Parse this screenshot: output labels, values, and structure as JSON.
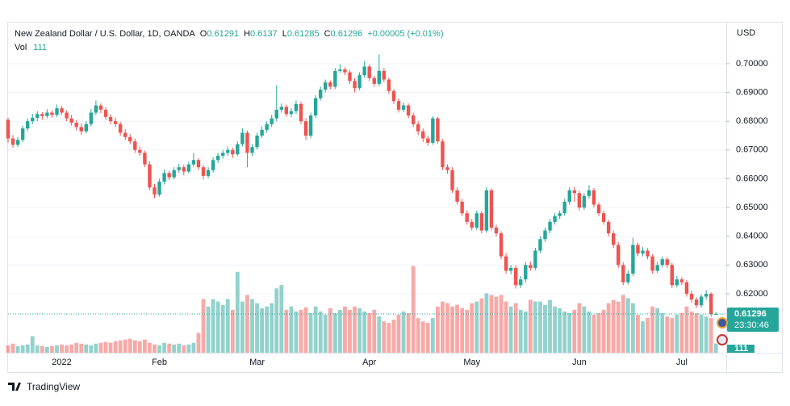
{
  "chart_data": {
    "type": "candlestick",
    "title": "New Zealand Dollar / U.S. Dollar, 1D, OANDA",
    "ohlc_labels": [
      "O",
      "H",
      "L",
      "C"
    ],
    "change": "+0.00005 (+0.01%)",
    "volume_title": "Vol",
    "unit": "USD",
    "countdown": "23:30:46",
    "brand": "TradingView",
    "up_color": "#26a69a",
    "down_color": "#ef5350",
    "grid": true,
    "ylim": [
      0.5995,
      0.7143
    ],
    "yticks": [
      {
        "value": 0.62,
        "label": "0.62000"
      },
      {
        "value": 0.63,
        "label": "0.63000"
      },
      {
        "value": 0.64,
        "label": "0.64000"
      },
      {
        "value": 0.65,
        "label": "0.65000"
      },
      {
        "value": 0.66,
        "label": "0.66000"
      },
      {
        "value": 0.67,
        "label": "0.67000"
      },
      {
        "value": 0.68,
        "label": "0.68000"
      },
      {
        "value": 0.69,
        "label": "0.69000"
      },
      {
        "value": 0.7,
        "label": "0.70000"
      }
    ],
    "categories": [
      null,
      null,
      null,
      null,
      null,
      null,
      null,
      null,
      null,
      null,
      null,
      "2022",
      null,
      null,
      null,
      null,
      null,
      null,
      null,
      null,
      null,
      null,
      null,
      null,
      null,
      null,
      null,
      null,
      null,
      null,
      null,
      "Feb",
      null,
      null,
      null,
      null,
      null,
      null,
      null,
      null,
      null,
      null,
      null,
      null,
      null,
      null,
      null,
      null,
      null,
      null,
      null,
      "Mar",
      null,
      null,
      null,
      null,
      null,
      null,
      null,
      null,
      null,
      null,
      null,
      null,
      null,
      null,
      null,
      null,
      null,
      null,
      null,
      null,
      null,
      null,
      "Apr",
      null,
      null,
      null,
      null,
      null,
      null,
      null,
      null,
      null,
      null,
      null,
      null,
      null,
      null,
      null,
      null,
      null,
      null,
      null,
      null,
      "May",
      null,
      null,
      null,
      null,
      null,
      null,
      null,
      null,
      null,
      null,
      null,
      null,
      null,
      null,
      null,
      null,
      null,
      null,
      null,
      null,
      null,
      "Jun",
      null,
      null,
      null,
      null,
      null,
      null,
      null,
      null,
      null,
      null,
      null,
      null,
      null,
      null,
      null,
      null,
      null,
      null,
      null,
      null,
      "Jul",
      null,
      null,
      null,
      null,
      null,
      null,
      null
    ],
    "ohlc": [
      [
        0.6805,
        0.6812,
        0.6725,
        0.674
      ],
      [
        0.674,
        0.6752,
        0.6708,
        0.6718
      ],
      [
        0.6718,
        0.6745,
        0.671,
        0.6735
      ],
      [
        0.6735,
        0.6785,
        0.6728,
        0.6775
      ],
      [
        0.6775,
        0.681,
        0.6765,
        0.68
      ],
      [
        0.68,
        0.6825,
        0.679,
        0.6812
      ],
      [
        0.6812,
        0.6835,
        0.68,
        0.6825
      ],
      [
        0.6825,
        0.6832,
        0.6805,
        0.6818
      ],
      [
        0.6818,
        0.6842,
        0.681,
        0.683
      ],
      [
        0.683,
        0.6838,
        0.6812,
        0.6822
      ],
      [
        0.6822,
        0.6858,
        0.6815,
        0.6845
      ],
      [
        0.6845,
        0.6852,
        0.6822,
        0.683
      ],
      [
        0.683,
        0.6838,
        0.68,
        0.681
      ],
      [
        0.681,
        0.6822,
        0.6785,
        0.6795
      ],
      [
        0.6795,
        0.6805,
        0.6768,
        0.678
      ],
      [
        0.678,
        0.6792,
        0.6752,
        0.6765
      ],
      [
        0.6765,
        0.68,
        0.6758,
        0.679
      ],
      [
        0.679,
        0.6842,
        0.6782,
        0.683
      ],
      [
        0.683,
        0.6872,
        0.6822,
        0.6855
      ],
      [
        0.6855,
        0.6862,
        0.6828,
        0.684
      ],
      [
        0.684,
        0.6848,
        0.6805,
        0.6815
      ],
      [
        0.6815,
        0.6825,
        0.679,
        0.68
      ],
      [
        0.68,
        0.6812,
        0.678,
        0.679
      ],
      [
        0.679,
        0.6798,
        0.675,
        0.676
      ],
      [
        0.676,
        0.6772,
        0.6735,
        0.6745
      ],
      [
        0.6745,
        0.6755,
        0.672,
        0.673
      ],
      [
        0.673,
        0.674,
        0.669,
        0.67
      ],
      [
        0.67,
        0.6712,
        0.668,
        0.669
      ],
      [
        0.669,
        0.6698,
        0.664,
        0.665
      ],
      [
        0.665,
        0.666,
        0.656,
        0.657
      ],
      [
        0.657,
        0.6582,
        0.6532,
        0.6545
      ],
      [
        0.6545,
        0.66,
        0.6538,
        0.659
      ],
      [
        0.659,
        0.6632,
        0.658,
        0.662
      ],
      [
        0.662,
        0.6628,
        0.6595,
        0.6605
      ],
      [
        0.6605,
        0.664,
        0.6598,
        0.663
      ],
      [
        0.663,
        0.6652,
        0.662,
        0.664
      ],
      [
        0.664,
        0.6648,
        0.6612,
        0.6625
      ],
      [
        0.6625,
        0.666,
        0.6618,
        0.665
      ],
      [
        0.665,
        0.669,
        0.6642,
        0.6665
      ],
      [
        0.6665,
        0.6672,
        0.663,
        0.664
      ],
      [
        0.664,
        0.6648,
        0.6598,
        0.661
      ],
      [
        0.661,
        0.664,
        0.6602,
        0.663
      ],
      [
        0.663,
        0.6675,
        0.6622,
        0.6665
      ],
      [
        0.6665,
        0.669,
        0.6655,
        0.668
      ],
      [
        0.668,
        0.67,
        0.667,
        0.669
      ],
      [
        0.669,
        0.6712,
        0.668,
        0.67
      ],
      [
        0.67,
        0.6708,
        0.6672,
        0.6685
      ],
      [
        0.6685,
        0.673,
        0.6678,
        0.672
      ],
      [
        0.672,
        0.6775,
        0.6712,
        0.676
      ],
      [
        0.676,
        0.6768,
        0.664,
        0.669
      ],
      [
        0.669,
        0.672,
        0.668,
        0.671
      ],
      [
        0.671,
        0.676,
        0.6702,
        0.675
      ],
      [
        0.675,
        0.6782,
        0.6742,
        0.677
      ],
      [
        0.677,
        0.68,
        0.676,
        0.679
      ],
      [
        0.679,
        0.6822,
        0.678,
        0.681
      ],
      [
        0.681,
        0.6925,
        0.68,
        0.684
      ],
      [
        0.684,
        0.6862,
        0.683,
        0.685
      ],
      [
        0.685,
        0.6858,
        0.6815,
        0.6825
      ],
      [
        0.6825,
        0.6845,
        0.6815,
        0.6835
      ],
      [
        0.6835,
        0.6872,
        0.6825,
        0.686
      ],
      [
        0.686,
        0.6868,
        0.679,
        0.68
      ],
      [
        0.68,
        0.681,
        0.6735,
        0.675
      ],
      [
        0.675,
        0.683,
        0.6742,
        0.682
      ],
      [
        0.682,
        0.689,
        0.6812,
        0.688
      ],
      [
        0.688,
        0.692,
        0.6872,
        0.691
      ],
      [
        0.691,
        0.6945,
        0.69,
        0.6935
      ],
      [
        0.6935,
        0.6942,
        0.691,
        0.692
      ],
      [
        0.692,
        0.6985,
        0.6912,
        0.6975
      ],
      [
        0.6975,
        0.6998,
        0.6968,
        0.698
      ],
      [
        0.698,
        0.6988,
        0.696,
        0.697
      ],
      [
        0.697,
        0.6978,
        0.693,
        0.694
      ],
      [
        0.694,
        0.695,
        0.69,
        0.6915
      ],
      [
        0.6915,
        0.697,
        0.6908,
        0.696
      ],
      [
        0.696,
        0.701,
        0.6952,
        0.699
      ],
      [
        0.699,
        0.6998,
        0.694,
        0.695
      ],
      [
        0.695,
        0.6958,
        0.692,
        0.693
      ],
      [
        0.693,
        0.7032,
        0.6922,
        0.6975
      ],
      [
        0.6975,
        0.6985,
        0.6935,
        0.6945
      ],
      [
        0.6945,
        0.6952,
        0.6895,
        0.6905
      ],
      [
        0.6905,
        0.6912,
        0.686,
        0.687
      ],
      [
        0.687,
        0.688,
        0.683,
        0.684
      ],
      [
        0.684,
        0.6865,
        0.6832,
        0.6855
      ],
      [
        0.6855,
        0.6862,
        0.681,
        0.682
      ],
      [
        0.682,
        0.683,
        0.678,
        0.679
      ],
      [
        0.679,
        0.68,
        0.6752,
        0.6765
      ],
      [
        0.6765,
        0.6775,
        0.6728,
        0.674
      ],
      [
        0.674,
        0.675,
        0.6715,
        0.6725
      ],
      [
        0.6725,
        0.6818,
        0.6718,
        0.681
      ],
      [
        0.681,
        0.6815,
        0.6722,
        0.673
      ],
      [
        0.673,
        0.6738,
        0.663,
        0.664
      ],
      [
        0.664,
        0.665,
        0.6618,
        0.663
      ],
      [
        0.663,
        0.664,
        0.655,
        0.656
      ],
      [
        0.656,
        0.657,
        0.651,
        0.652
      ],
      [
        0.652,
        0.653,
        0.647,
        0.648
      ],
      [
        0.648,
        0.649,
        0.644,
        0.645
      ],
      [
        0.645,
        0.646,
        0.642,
        0.643
      ],
      [
        0.643,
        0.649,
        0.6422,
        0.648
      ],
      [
        0.648,
        0.6488,
        0.641,
        0.642
      ],
      [
        0.642,
        0.657,
        0.6412,
        0.656
      ],
      [
        0.656,
        0.6566,
        0.642,
        0.643
      ],
      [
        0.643,
        0.644,
        0.64,
        0.641
      ],
      [
        0.641,
        0.6418,
        0.632,
        0.633
      ],
      [
        0.633,
        0.634,
        0.627,
        0.628
      ],
      [
        0.628,
        0.63,
        0.6268,
        0.629
      ],
      [
        0.629,
        0.6298,
        0.6218,
        0.623
      ],
      [
        0.623,
        0.6262,
        0.622,
        0.625
      ],
      [
        0.625,
        0.631,
        0.624,
        0.63
      ],
      [
        0.63,
        0.6312,
        0.628,
        0.629
      ],
      [
        0.629,
        0.636,
        0.6282,
        0.635
      ],
      [
        0.635,
        0.64,
        0.6342,
        0.639
      ],
      [
        0.639,
        0.643,
        0.638,
        0.642
      ],
      [
        0.642,
        0.646,
        0.641,
        0.645
      ],
      [
        0.645,
        0.648,
        0.644,
        0.647
      ],
      [
        0.647,
        0.649,
        0.646,
        0.648
      ],
      [
        0.648,
        0.653,
        0.6472,
        0.652
      ],
      [
        0.652,
        0.657,
        0.651,
        0.656
      ],
      [
        0.656,
        0.6572,
        0.652,
        0.655
      ],
      [
        0.655,
        0.6558,
        0.649,
        0.65
      ],
      [
        0.65,
        0.655,
        0.6492,
        0.654
      ],
      [
        0.654,
        0.6578,
        0.653,
        0.656
      ],
      [
        0.656,
        0.6568,
        0.65,
        0.651
      ],
      [
        0.651,
        0.6518,
        0.647,
        0.648
      ],
      [
        0.648,
        0.649,
        0.644,
        0.645
      ],
      [
        0.645,
        0.6458,
        0.64,
        0.641
      ],
      [
        0.641,
        0.642,
        0.636,
        0.637
      ],
      [
        0.637,
        0.638,
        0.629,
        0.63
      ],
      [
        0.63,
        0.631,
        0.623,
        0.624
      ],
      [
        0.624,
        0.6282,
        0.6232,
        0.627
      ],
      [
        0.627,
        0.6395,
        0.6262,
        0.637
      ],
      [
        0.637,
        0.6378,
        0.633,
        0.634
      ],
      [
        0.634,
        0.6362,
        0.633,
        0.635
      ],
      [
        0.635,
        0.6358,
        0.632,
        0.633
      ],
      [
        0.633,
        0.6338,
        0.627,
        0.628
      ],
      [
        0.628,
        0.6312,
        0.6272,
        0.63
      ],
      [
        0.63,
        0.633,
        0.6292,
        0.632
      ],
      [
        0.632,
        0.6328,
        0.629,
        0.63
      ],
      [
        0.63,
        0.6308,
        0.622,
        0.623
      ],
      [
        0.623,
        0.6262,
        0.6222,
        0.625
      ],
      [
        0.625,
        0.6258,
        0.623,
        0.624
      ],
      [
        0.624,
        0.6248,
        0.619,
        0.62
      ],
      [
        0.62,
        0.621,
        0.617,
        0.618
      ],
      [
        0.618,
        0.6188,
        0.615,
        0.616
      ],
      [
        0.616,
        0.6198,
        0.6152,
        0.619
      ],
      [
        0.619,
        0.6212,
        0.618,
        0.62
      ],
      [
        0.62,
        0.6205,
        0.612,
        0.6129
      ],
      [
        0.61291,
        0.6137,
        0.61285,
        0.61296
      ]
    ],
    "volume": {
      "ylim": [
        0,
        4000
      ],
      "values": [
        90,
        110,
        80,
        90,
        100,
        200,
        90,
        80,
        70,
        80,
        90,
        100,
        90,
        100,
        120,
        110,
        100,
        90,
        110,
        120,
        130,
        120,
        140,
        150,
        160,
        170,
        150,
        140,
        160,
        120,
        100,
        90,
        120,
        110,
        100,
        110,
        90,
        100,
        120,
        240,
        650,
        560,
        650,
        620,
        580,
        650,
        520,
        980,
        620,
        700,
        650,
        600,
        540,
        560,
        600,
        780,
        820,
        520,
        560,
        500,
        520,
        550,
        480,
        560,
        500,
        460,
        540,
        480,
        520,
        560,
        520,
        560,
        540,
        500,
        480,
        520,
        440,
        380,
        360,
        400,
        460,
        500,
        480,
        1050,
        420,
        380,
        360,
        420,
        560,
        620,
        600,
        560,
        580,
        540,
        520,
        600,
        620,
        660,
        720,
        700,
        680,
        700,
        620,
        560,
        600,
        520,
        500,
        640,
        620,
        620,
        580,
        640,
        560,
        540,
        500,
        480,
        520,
        600,
        560,
        500,
        460,
        480,
        520,
        600,
        640,
        620,
        700,
        660,
        600,
        460,
        380,
        420,
        560,
        540,
        480,
        440,
        420,
        460,
        480,
        560,
        500,
        480,
        460,
        440,
        420,
        111
      ]
    }
  }
}
